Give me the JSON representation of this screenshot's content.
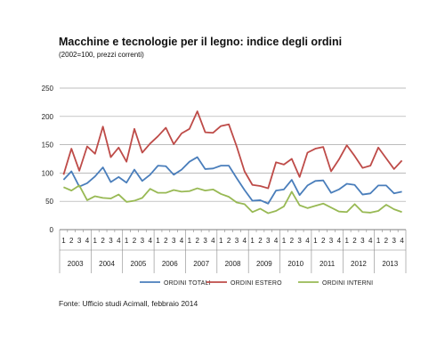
{
  "title": "Macchine e tecnologie per il legno: indice degli ordini",
  "subtitle": "(2002=100, prezzi correnti)",
  "source": "Fonte: Ufficio studi Acimall, febbraio 2014",
  "chart_data": {
    "type": "line",
    "ylim": [
      0,
      250
    ],
    "yticks": [
      0,
      50,
      100,
      150,
      200,
      250
    ],
    "quarters": [
      "1",
      "2",
      "3",
      "4"
    ],
    "years": [
      "2003",
      "2004",
      "2005",
      "2006",
      "2007",
      "2008",
      "2009",
      "2010",
      "2011",
      "2012",
      "2013"
    ],
    "grid": "horizontal",
    "legend_position": "bottom",
    "series": [
      {
        "name": "ORDINI TOTALI",
        "color": "#4a7ebb",
        "values": [
          88,
          103,
          76,
          82,
          94,
          110,
          84,
          93,
          83,
          106,
          86,
          97,
          113,
          112,
          97,
          106,
          120,
          128,
          107,
          108,
          113,
          113,
          91,
          70,
          51,
          52,
          46,
          69,
          71,
          88,
          61,
          78,
          86,
          87,
          65,
          71,
          81,
          79,
          62,
          64,
          78,
          78,
          64,
          67
        ]
      },
      {
        "name": "ORDINI ESTERO",
        "color": "#be4b48",
        "values": [
          97,
          143,
          104,
          147,
          134,
          182,
          128,
          145,
          120,
          178,
          136,
          152,
          165,
          180,
          151,
          170,
          178,
          209,
          172,
          171,
          183,
          186,
          147,
          103,
          79,
          77,
          73,
          119,
          115,
          125,
          93,
          136,
          143,
          146,
          103,
          124,
          149,
          130,
          109,
          113,
          145,
          126,
          107,
          122
        ]
      },
      {
        "name": "ORDINI INTERNI",
        "color": "#98b954",
        "values": [
          75,
          69,
          78,
          52,
          59,
          56,
          55,
          62,
          49,
          51,
          56,
          72,
          65,
          65,
          70,
          67,
          68,
          73,
          69,
          71,
          63,
          58,
          48,
          45,
          31,
          37,
          29,
          33,
          41,
          67,
          43,
          38,
          42,
          46,
          39,
          32,
          31,
          45,
          31,
          30,
          33,
          44,
          36,
          31
        ]
      }
    ]
  }
}
